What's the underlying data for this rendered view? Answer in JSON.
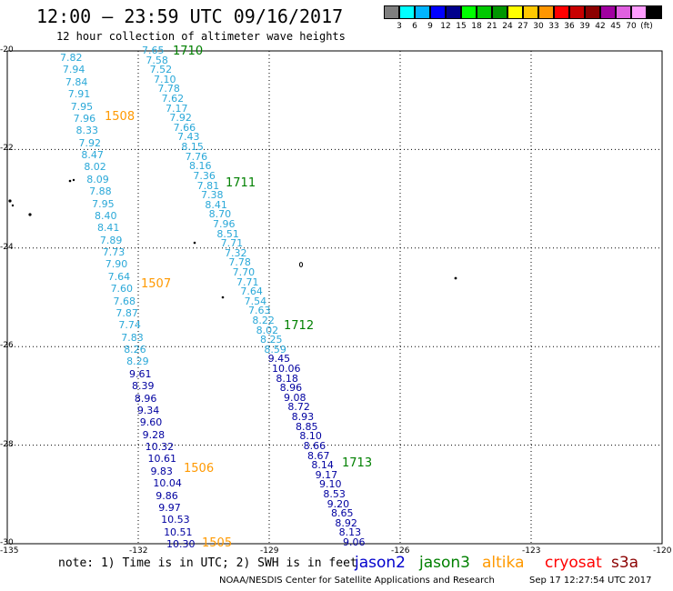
{
  "header": {
    "title": "12:00 – 23:59 UTC 09/16/2017",
    "subtitle": "12 hour collection of altimeter wave heights"
  },
  "colorbar": {
    "colors": [
      "#7f7f7f",
      "#00ffff",
      "#00b4ff",
      "#0000ff",
      "#00008c",
      "#00ff00",
      "#00c800",
      "#009600",
      "#ffff00",
      "#ffc800",
      "#ff9600",
      "#ff0000",
      "#c80000",
      "#8c0000",
      "#a000a0",
      "#e060e0",
      "#ff9cff",
      "#000000"
    ],
    "ticks": [
      "3",
      "6",
      "9",
      "12",
      "15",
      "18",
      "21",
      "24",
      "27",
      "30",
      "33",
      "36",
      "39",
      "42",
      "45",
      "70",
      "(ft)"
    ]
  },
  "axes": {
    "lat_labels": [
      "-20",
      "-22",
      "-24",
      "-26",
      "-28",
      "-30"
    ],
    "lon_labels": [
      "-135",
      "-132",
      "-129",
      "-126",
      "-123",
      "-120"
    ],
    "lat_range": [
      -30,
      -20
    ],
    "lon_range": [
      -135,
      -120
    ]
  },
  "colors": {
    "jason2": "#0000cc",
    "jason3": "#008000",
    "altika": "#ff9900",
    "cryosat": "#ff0000",
    "s3a": "#8b0000",
    "light_blue": "#2aa8d8",
    "dark_blue": "#0000a0"
  },
  "track_left": {
    "values": [
      "7.82",
      "7.94",
      "7.84",
      "7.91",
      "7.95",
      "7.96",
      "8.33",
      "7.92",
      "8.47",
      "8.02",
      "8.09",
      "7.88",
      "7.95",
      "8.40",
      "8.41",
      "7.89",
      "7.73",
      "7.90",
      "7.64",
      "7.60",
      "7.68",
      "7.87",
      "7.74",
      "7.83",
      "8.26",
      "8.29",
      "9.61",
      "8.39",
      "8.96",
      "9.34",
      "9.60",
      "9.28",
      "10.32",
      "10.61",
      "9.83",
      "10.04",
      "9.86",
      "9.97",
      "10.53",
      "10.51",
      "10.30"
    ],
    "dark_from": 26
  },
  "track_right": {
    "values": [
      "7.65",
      "7.58",
      "7.52",
      "7.10",
      "7.78",
      "7.62",
      "7.17",
      "7.92",
      "7.66",
      "7.43",
      "8.15",
      "7.76",
      "8.16",
      "7.36",
      "7.81",
      "7.38",
      "8.41",
      "8.70",
      "7.96",
      "8.51",
      "7.71",
      "7.32",
      "7.78",
      "7.70",
      "7.71",
      "7.64",
      "7.54",
      "7.63",
      "8.22",
      "8.02",
      "8.25",
      "8.59",
      "9.45",
      "10.06",
      "8.18",
      "8.96",
      "9.08",
      "8.72",
      "8.93",
      "8.85",
      "8.10",
      "8.66",
      "8.67",
      "8.14",
      "9.17",
      "9.10",
      "8.53",
      "9.20",
      "8.65",
      "8.92",
      "8.13",
      "9.06"
    ],
    "dark_from": 32
  },
  "hour_labels": {
    "altika": [
      "1508",
      "1507",
      "1506",
      "1505"
    ],
    "jason3": [
      "1710",
      "1711",
      "1712",
      "1713"
    ]
  },
  "footer": {
    "note": "note: 1) Time is in UTC; 2) SWH is in feet",
    "satellites": [
      "jason2",
      "jason3",
      "altika",
      "cryosat",
      "s3a"
    ],
    "credit": "NOAA/NESDIS Center for Satellite Applications and Research",
    "timestamp": "Sep 17 12:27:54 UTC 2017"
  }
}
